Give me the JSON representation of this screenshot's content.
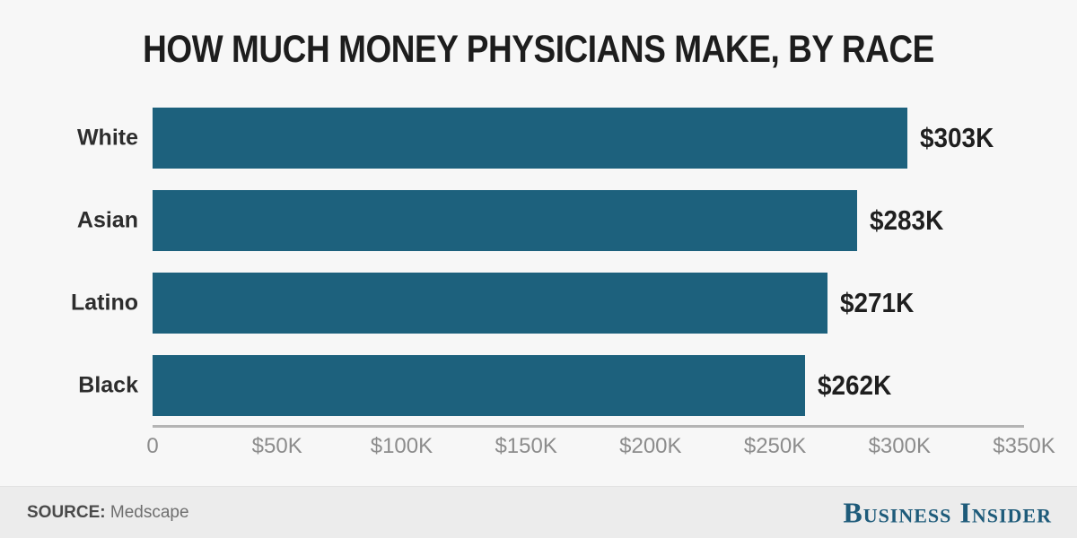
{
  "chart_data": {
    "type": "bar",
    "orientation": "horizontal",
    "title": "HOW MUCH MONEY PHYSICIANS MAKE, BY RACE",
    "categories": [
      "White",
      "Asian",
      "Latino",
      "Black"
    ],
    "values": [
      303000,
      283000,
      271000,
      262000
    ],
    "value_labels": [
      "$303K",
      "$283K",
      "$271K",
      "$262K"
    ],
    "xlabel": "",
    "ylabel": "",
    "xlim": [
      0,
      350000
    ],
    "x_ticks": [
      "0",
      "$50K",
      "$100K",
      "$150K",
      "$200K",
      "$250K",
      "$300K",
      "$350K"
    ],
    "x_tick_values": [
      0,
      50000,
      100000,
      150000,
      200000,
      250000,
      300000,
      350000
    ],
    "grid": false,
    "legend": false,
    "bar_color": "#1d617d"
  },
  "colors": {
    "background": "#f7f7f7",
    "footer_background": "#ececec",
    "axis_line": "#b4b4b4",
    "tick_text": "#8c8c8c",
    "title_text": "#1d1d1d",
    "logo_blue": "#1e5b7a"
  },
  "footer": {
    "source_label": "SOURCE:",
    "source_value": "Medscape",
    "logo_text": "Business Insider"
  }
}
